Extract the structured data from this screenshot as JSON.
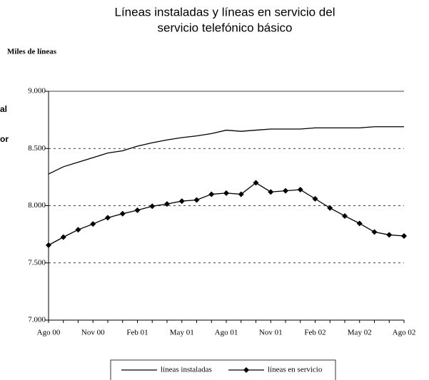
{
  "chart_data": {
    "type": "line",
    "title_lines": [
      "Líneas instaladas y  líneas en servicio del",
      "servicio  telefónico básico"
    ],
    "y_label": "Miles de líneas",
    "annotations": [
      "al",
      "or"
    ],
    "categories": [
      "Ago 00",
      null,
      null,
      "Nov 00",
      null,
      null,
      "Feb 01",
      null,
      null,
      "May 01",
      null,
      null,
      "Ago 01",
      null,
      null,
      "Nov 01",
      null,
      null,
      "Feb 02",
      null,
      null,
      "May 02",
      null,
      null,
      "Ago 02"
    ],
    "series": [
      {
        "name": "líneas instaladas",
        "color": "#000000",
        "marker": "none",
        "values": [
          8277,
          8340,
          8380,
          8420,
          8460,
          8480,
          8520,
          8550,
          8575,
          8595,
          8610,
          8630,
          8660,
          8650,
          8660,
          8670,
          8670,
          8670,
          8680,
          8680,
          8680,
          8680,
          8690,
          8690,
          8690
        ]
      },
      {
        "name": "líneas en servicio",
        "color": "#000000",
        "marker": "diamond",
        "values": [
          7655,
          7725,
          7790,
          7840,
          7895,
          7930,
          7960,
          7995,
          8015,
          8040,
          8050,
          8100,
          8110,
          8100,
          8200,
          8120,
          8130,
          8140,
          8060,
          7980,
          7910,
          7845,
          7770,
          7745,
          7735
        ]
      }
    ],
    "ylim": [
      7000,
      9000
    ],
    "yticks": [
      {
        "value": 7000,
        "label": "7.000"
      },
      {
        "value": 7500,
        "label": "7.500"
      },
      {
        "value": 8000,
        "label": "8.000"
      },
      {
        "value": 8500,
        "label": "8.500"
      },
      {
        "value": 9000,
        "label": "9.000"
      }
    ],
    "grid": true
  }
}
